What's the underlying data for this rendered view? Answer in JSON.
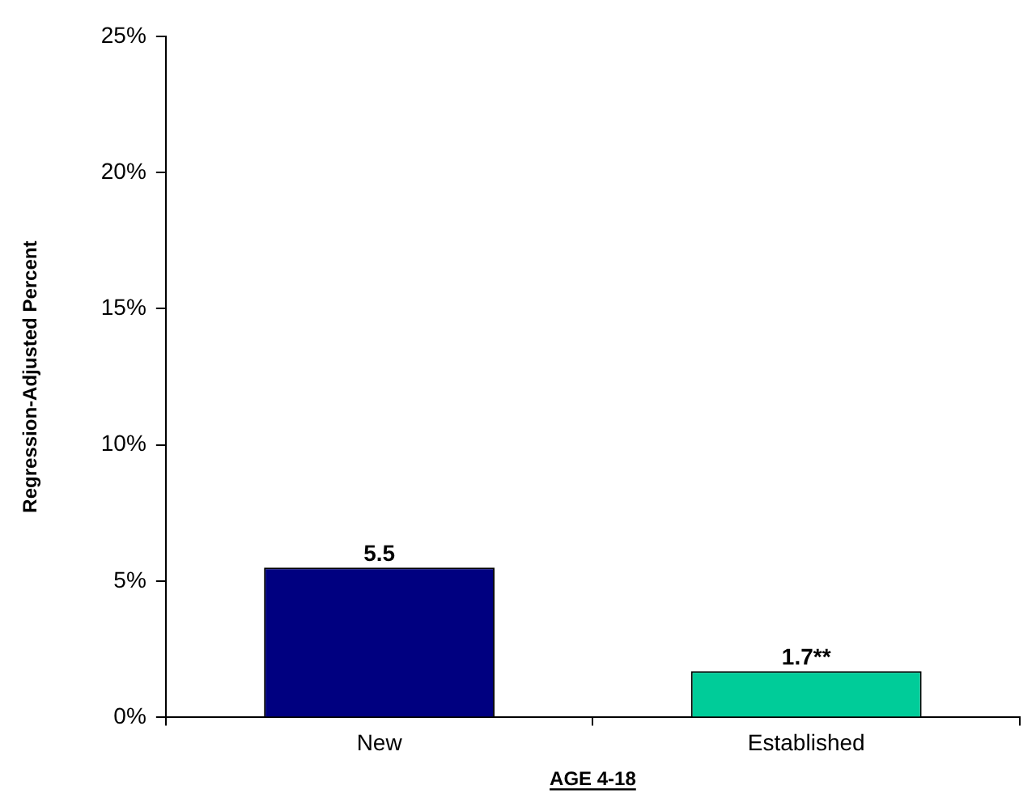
{
  "chart_data": {
    "type": "bar",
    "xlabel": "AGE 4-18",
    "ylabel": "Regression-Adjusted Percent",
    "categories": [
      "New",
      "Established"
    ],
    "values": [
      5.5,
      1.7
    ],
    "colors": [
      "#000080",
      "#00cc99"
    ],
    "value_labels": [
      "5.5",
      "1.7**"
    ],
    "ylim": [
      0,
      25
    ],
    "yticks": [
      {
        "value": 0,
        "label": "0%"
      },
      {
        "value": 5,
        "label": "5%"
      },
      {
        "value": 10,
        "label": "10%"
      },
      {
        "value": 15,
        "label": "15%"
      },
      {
        "value": 20,
        "label": "20%"
      },
      {
        "value": 25,
        "label": "25%"
      }
    ],
    "grid": false,
    "legend": false
  }
}
